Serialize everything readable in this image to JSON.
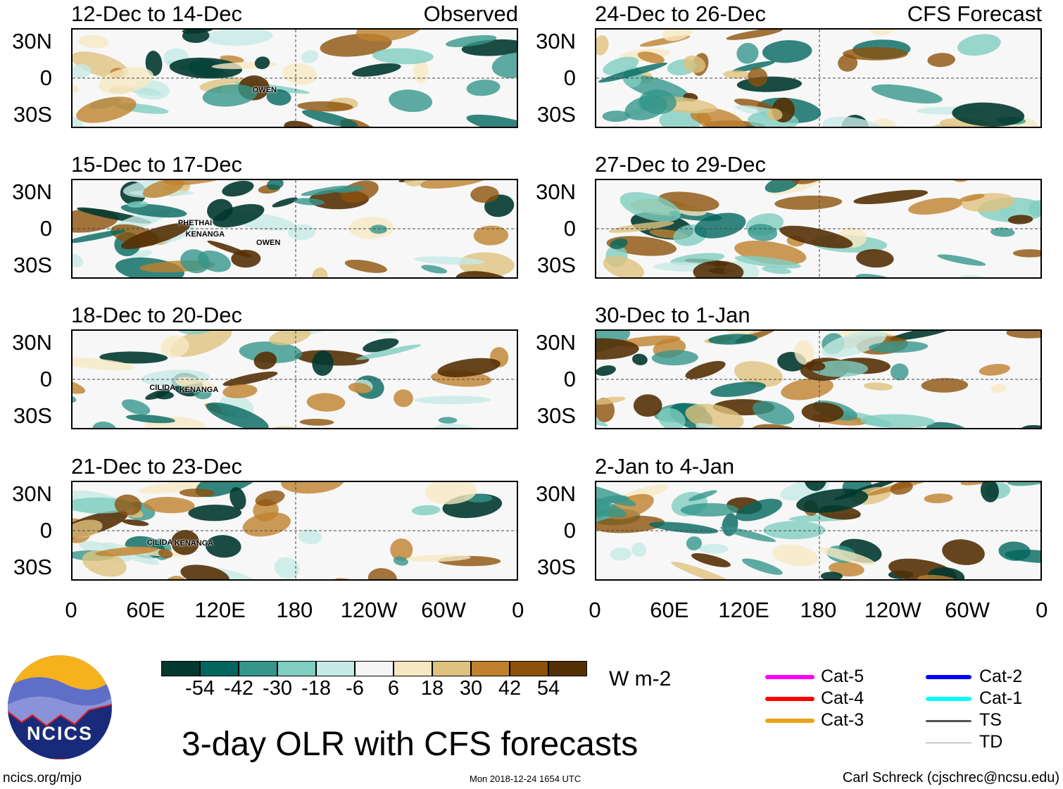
{
  "panels": [
    {
      "title": "12-Dec to 14-Dec",
      "tag": "Observed",
      "storms": [
        {
          "name": "OWEN",
          "lon": 145,
          "lat": -10
        }
      ]
    },
    {
      "title": "24-Dec to 26-Dec",
      "tag": "CFS Forecast",
      "storms": []
    },
    {
      "title": "15-Dec to 17-Dec",
      "tag": "",
      "storms": [
        {
          "name": "PHETHAI",
          "lon": 85,
          "lat": 5
        },
        {
          "name": "KENANGA",
          "lon": 91,
          "lat": -5
        },
        {
          "name": "OWEN",
          "lon": 148,
          "lat": -12
        }
      ]
    },
    {
      "title": "27-Dec to 29-Dec",
      "tag": "",
      "storms": []
    },
    {
      "title": "18-Dec to 20-Dec",
      "tag": "",
      "storms": [
        {
          "name": "CILIDA",
          "lon": 62,
          "lat": -7
        },
        {
          "name": "KENANGA",
          "lon": 86,
          "lat": -9
        }
      ]
    },
    {
      "title": "30-Dec to 1-Jan",
      "tag": "",
      "storms": []
    },
    {
      "title": "21-Dec to 23-Dec",
      "tag": "",
      "storms": [
        {
          "name": "CILIDA",
          "lon": 60,
          "lat": -10
        },
        {
          "name": "KENANGA",
          "lon": 82,
          "lat": -11
        }
      ]
    },
    {
      "title": "2-Jan to 4-Jan",
      "tag": "",
      "storms": []
    }
  ],
  "ylabels": [
    "30N",
    "0",
    "30S"
  ],
  "xlabels": [
    "0",
    "60E",
    "120E",
    "180",
    "120W",
    "60W",
    "0"
  ],
  "colorbar": {
    "colors": [
      "#01382f",
      "#02665f",
      "#35968b",
      "#80cdc1",
      "#c7eae5",
      "#f5f5f5",
      "#f6e8c3",
      "#dfc27d",
      "#bf812d",
      "#8c510a",
      "#543005"
    ],
    "labels": [
      "-54",
      "-42",
      "-30",
      "-18",
      "-6",
      "6",
      "18",
      "30",
      "42",
      "54"
    ],
    "units": "W m-2"
  },
  "legend": [
    {
      "label": "Cat-5",
      "color": "#ff00ff"
    },
    {
      "label": "Cat-4",
      "color": "#ff0000"
    },
    {
      "label": "Cat-3",
      "color": "#e8a317"
    },
    {
      "label": "Cat-2",
      "color": "#0000ff"
    },
    {
      "label": "Cat-1",
      "color": "#00ffff"
    },
    {
      "label": "TS",
      "color": "#555555"
    },
    {
      "label": "TD",
      "color": "#999999"
    }
  ],
  "title": "3-day OLR with CFS forecasts",
  "logo_text": "NCICS",
  "site": "ncics.org/mjo",
  "timestamp": "Mon 2018-12-24 1654 UTC",
  "author": "Carl Schreck (cjschrec@ncsu.edu)"
}
